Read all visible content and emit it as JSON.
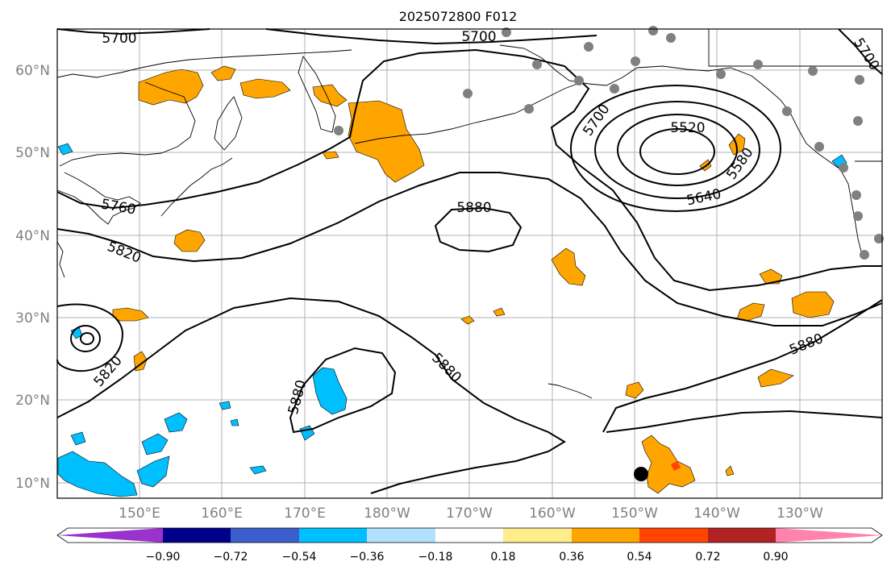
{
  "title": "2025072800 F012",
  "map": {
    "lat_labels": [
      "60°N",
      "50°N",
      "40°N",
      "30°N",
      "20°N",
      "10°N"
    ],
    "lon_labels": [
      "150°E",
      "160°E",
      "170°E",
      "180°W",
      "170°W",
      "160°W",
      "150°W",
      "140°W",
      "130°W"
    ],
    "contour_labels": [
      {
        "text": "5700"
      },
      {
        "text": "5700"
      },
      {
        "text": "5700"
      },
      {
        "text": "5700"
      },
      {
        "text": "5520"
      },
      {
        "text": "5580"
      },
      {
        "text": "5640"
      },
      {
        "text": "5760"
      },
      {
        "text": "5820"
      },
      {
        "text": "5880"
      },
      {
        "text": "5820"
      },
      {
        "text": "5880"
      },
      {
        "text": "5880"
      },
      {
        "text": "5880"
      }
    ]
  },
  "colorbar": {
    "ticks": [
      "−0.90",
      "−0.72",
      "−0.54",
      "−0.36",
      "−0.18",
      "0.18",
      "0.36",
      "0.54",
      "0.72",
      "0.90"
    ],
    "colors": [
      "#9a32cd",
      "#00008b",
      "#3a5fcd",
      "#00bfff",
      "#b0e2ff",
      "#ffffff",
      "#ffec8b",
      "#ffa500",
      "#ff4500",
      "#b22222",
      "#ff83ab"
    ]
  }
}
